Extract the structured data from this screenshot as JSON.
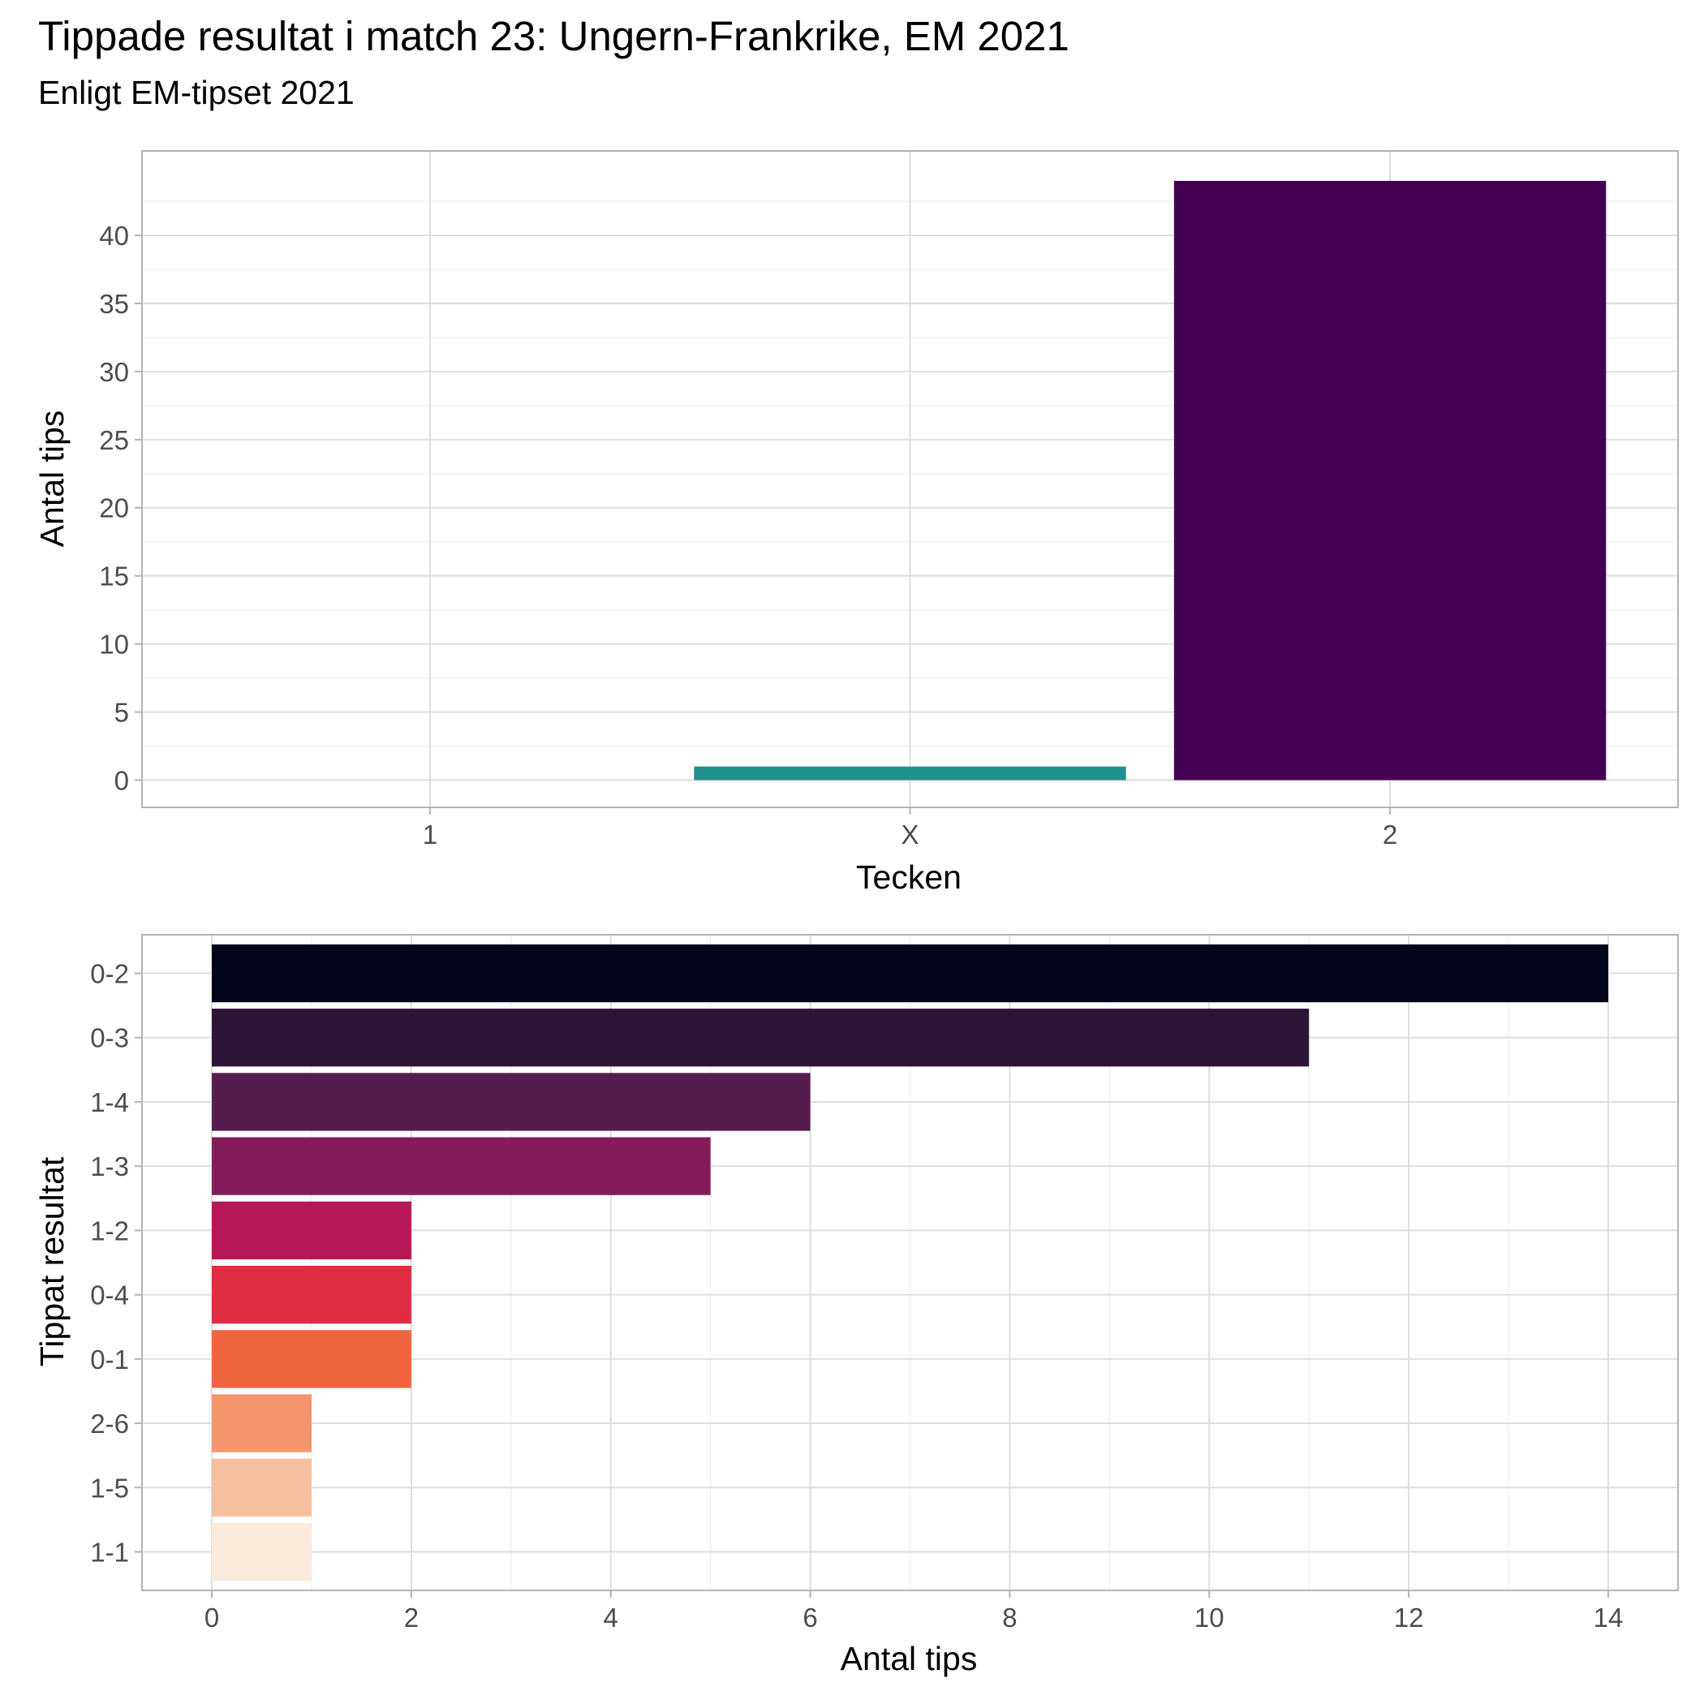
{
  "title": "Tippade resultat i match 23: Ungern-Frankrike, EM 2021",
  "subtitle": "Enligt EM-tipset 2021",
  "chart_data": [
    {
      "type": "bar",
      "orientation": "vertical",
      "categories": [
        "1",
        "X",
        "2"
      ],
      "values": [
        0,
        1,
        44
      ],
      "colors": [
        "#440154",
        "#21908C",
        "#440154"
      ],
      "xlabel": "Tecken",
      "ylabel": "Antal tips",
      "ylim": [
        -2,
        46.2
      ],
      "yticks": [
        0,
        5,
        10,
        15,
        20,
        25,
        30,
        35,
        40
      ],
      "grid": true,
      "legend": "none"
    },
    {
      "type": "bar",
      "orientation": "horizontal",
      "categories": [
        "0-2",
        "0-3",
        "1-4",
        "1-3",
        "1-2",
        "0-4",
        "0-1",
        "2-6",
        "1-5",
        "1-1"
      ],
      "values": [
        14,
        11,
        6,
        5,
        2,
        2,
        2,
        1,
        1,
        1
      ],
      "colors": [
        "#03051A",
        "#2B1637",
        "#541D4E",
        "#841C5A",
        "#B61757",
        "#DE2D43",
        "#F0653E",
        "#F4956B",
        "#F6C0A0",
        "#FAEBDD"
      ],
      "xlabel": "Antal tips",
      "ylabel": "Tippat resultat",
      "xlim": [
        -0.7,
        14.7
      ],
      "xticks": [
        0,
        2,
        4,
        6,
        8,
        10,
        12,
        14
      ],
      "grid": true,
      "legend": "none"
    }
  ]
}
